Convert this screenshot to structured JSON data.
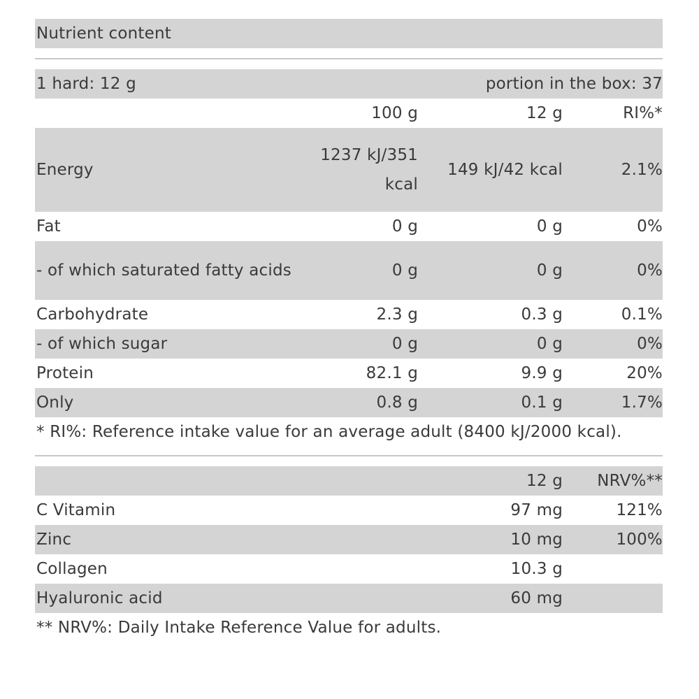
{
  "title": "Nutrient content",
  "serving": {
    "left": "1 hard: 12 g",
    "right": "portion in the box: 37"
  },
  "table1": {
    "headers": [
      "",
      "100 g",
      "12 g",
      "RI%*"
    ],
    "rows": [
      {
        "name": "Energy",
        "per100": "1237 kJ/351 kcal",
        "per12": "149 kJ/42 kcal",
        "ri": "2.1%"
      },
      {
        "name": "Fat",
        "per100": "0 g",
        "per12": "0 g",
        "ri": "0%"
      },
      {
        "name": "- of which saturated fatty acids",
        "per100": "0 g",
        "per12": "0 g",
        "ri": "0%"
      },
      {
        "name": "Carbohydrate",
        "per100": "2.3 g",
        "per12": "0.3 g",
        "ri": "0.1%"
      },
      {
        "name": "- of which sugar",
        "per100": "0 g",
        "per12": "0 g",
        "ri": "0%"
      },
      {
        "name": "Protein",
        "per100": "82.1 g",
        "per12": "9.9 g",
        "ri": "20%"
      },
      {
        "name": "Only",
        "per100": "0.8 g",
        "per12": "0.1 g",
        "ri": "1.7%"
      }
    ],
    "footnote": "* RI%: Reference intake value for an average adult (8400 kJ/2000 kcal)."
  },
  "table2": {
    "headers": [
      "",
      "12 g",
      "NRV%**"
    ],
    "rows": [
      {
        "name": "C Vitamin",
        "per12": "97 mg",
        "nrv": "121%"
      },
      {
        "name": "Zinc",
        "per12": "10 mg",
        "nrv": "100%"
      },
      {
        "name": "Collagen",
        "per12": "10.3 g",
        "nrv": ""
      },
      {
        "name": "Hyaluronic acid",
        "per12": "60 mg",
        "nrv": ""
      }
    ],
    "footnote": "** NRV%: Daily Intake Reference Value for adults."
  }
}
